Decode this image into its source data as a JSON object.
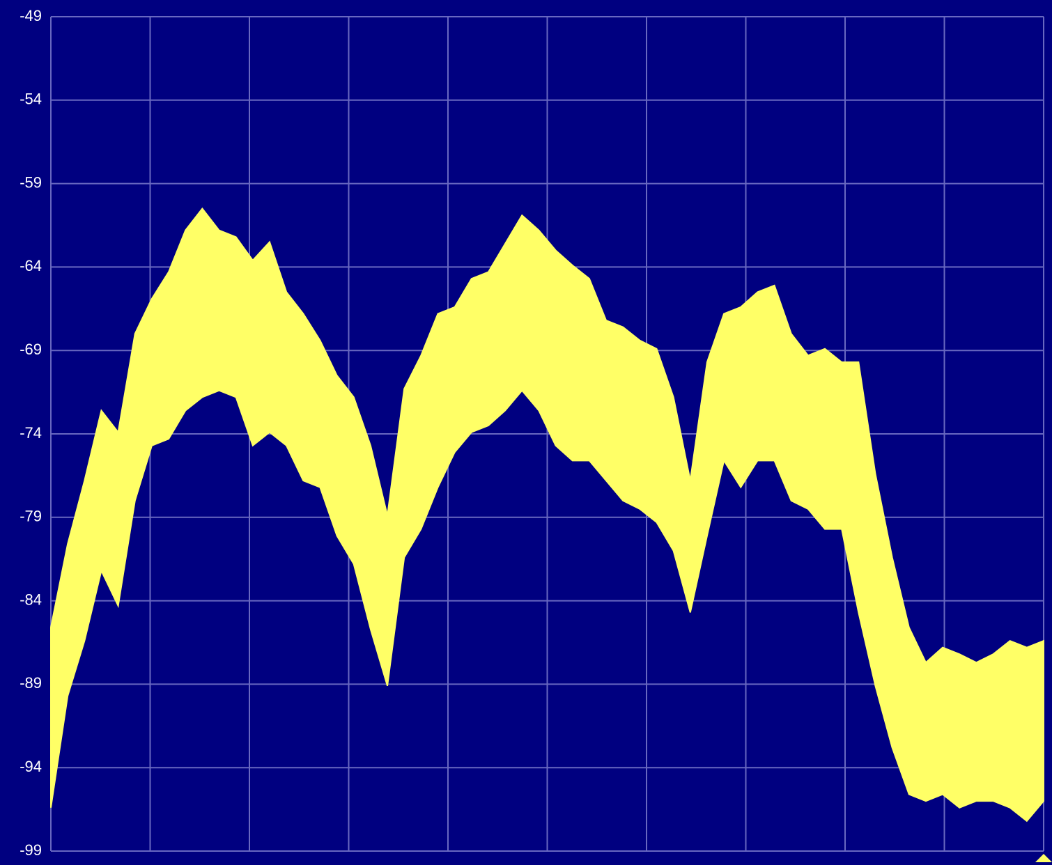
{
  "chart_data": {
    "type": "band",
    "ylim": [
      -99,
      -49
    ],
    "yticks": [
      -49,
      -54,
      -59,
      -64,
      -69,
      -74,
      -79,
      -84,
      -89,
      -94,
      -99
    ],
    "grid": true,
    "background": "#000080",
    "series": [
      {
        "color": "#ffff66",
        "values": [
          -85.6,
          -80.6,
          -76.8,
          -72.6,
          -73.9,
          -68.0,
          -65.9,
          -64.3,
          -61.8,
          -60.5,
          -61.8,
          -62.2,
          -63.6,
          -62.5,
          -65.5,
          -66.8,
          -68.4,
          -70.5,
          -71.8,
          -74.7,
          -78.9,
          -71.3,
          -69.3,
          -66.8,
          -66.4,
          -64.7,
          -64.3,
          -62.6,
          -60.9,
          -61.8,
          -63.0,
          -63.9,
          -64.7,
          -67.2,
          -67.6,
          -68.4,
          -68.9,
          -71.8,
          -76.8,
          -69.7,
          -66.8,
          -66.4,
          -65.5,
          -65.1,
          -68.0,
          -69.3,
          -68.9,
          -69.7,
          -69.7,
          -76.4,
          -81.4,
          -85.6,
          -87.7,
          -86.8,
          -87.2,
          -87.7,
          -87.2,
          -86.4,
          -86.8,
          -86.4
        ]
      },
      {
        "color": "#ffff66",
        "values": [
          -96.4,
          -89.7,
          -86.4,
          -82.2,
          -84.3,
          -78.0,
          -74.7,
          -74.3,
          -72.6,
          -71.8,
          -71.4,
          -71.8,
          -74.7,
          -73.9,
          -74.7,
          -76.8,
          -77.2,
          -80.1,
          -81.8,
          -85.7,
          -89.1,
          -81.4,
          -79.7,
          -77.2,
          -75.1,
          -73.9,
          -73.5,
          -72.6,
          -71.4,
          -72.6,
          -74.7,
          -75.6,
          -75.6,
          -76.8,
          -78.0,
          -78.5,
          -79.3,
          -81.0,
          -84.7,
          -80.1,
          -75.6,
          -77.2,
          -75.6,
          -75.6,
          -78.0,
          -78.5,
          -79.7,
          -79.7,
          -84.7,
          -89.1,
          -92.8,
          -95.6,
          -96.0,
          -95.6,
          -96.4,
          -96.0,
          -96.0,
          -96.4,
          -97.2,
          -96.0
        ]
      }
    ]
  }
}
